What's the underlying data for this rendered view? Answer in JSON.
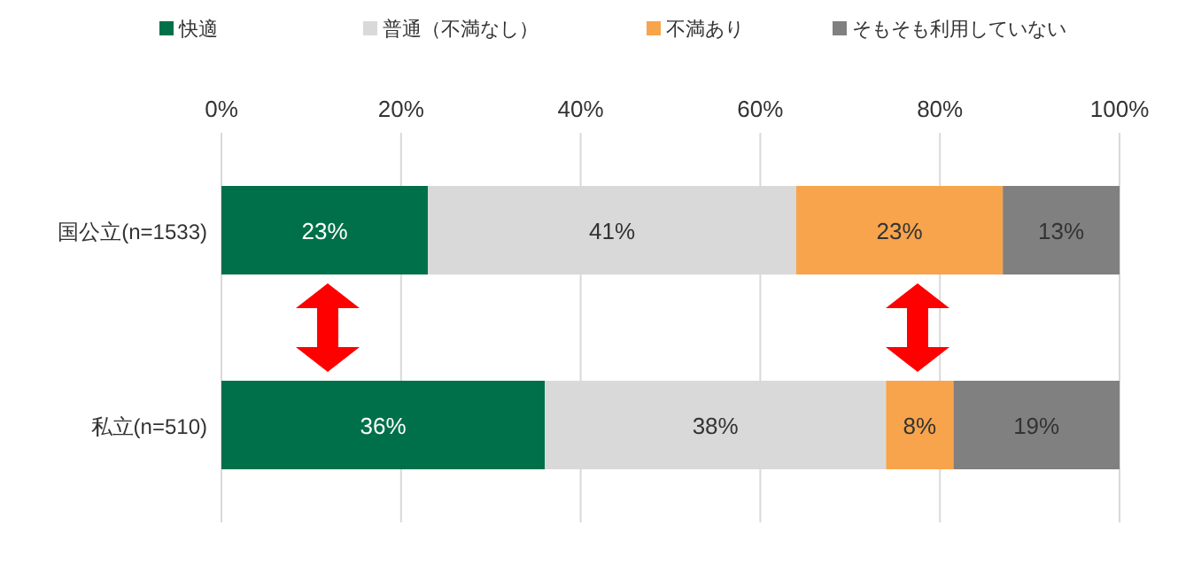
{
  "chart_data": {
    "type": "bar",
    "orientation": "horizontal",
    "stacked": true,
    "categories": [
      "国公立(n=1533)",
      "私立(n=510)"
    ],
    "series": [
      {
        "name": "快適",
        "color": "#00704a",
        "values": [
          23,
          36
        ],
        "value_labels": [
          "23%",
          "36%"
        ]
      },
      {
        "name": "普通（不満なし）",
        "color": "#d9d9d9",
        "values": [
          41,
          38
        ],
        "value_labels": [
          "41%",
          "38%"
        ]
      },
      {
        "name": "不満あり",
        "color": "#f8a44c",
        "values": [
          23,
          7.5
        ],
        "value_labels": [
          "23%",
          "8%"
        ]
      },
      {
        "name": "そもそも利用していない",
        "color": "#808080",
        "values": [
          13,
          18.5
        ],
        "value_labels": [
          "13%",
          "19%"
        ]
      }
    ],
    "xlim": [
      0,
      100
    ],
    "xticks": [
      {
        "value": 0,
        "label": "0%"
      },
      {
        "value": 20,
        "label": "20%"
      },
      {
        "value": 40,
        "label": "40%"
      },
      {
        "value": 60,
        "label": "60%"
      },
      {
        "value": 80,
        "label": "80%"
      },
      {
        "value": 100,
        "label": "100%"
      }
    ],
    "grid": "x",
    "legend": "top"
  }
}
